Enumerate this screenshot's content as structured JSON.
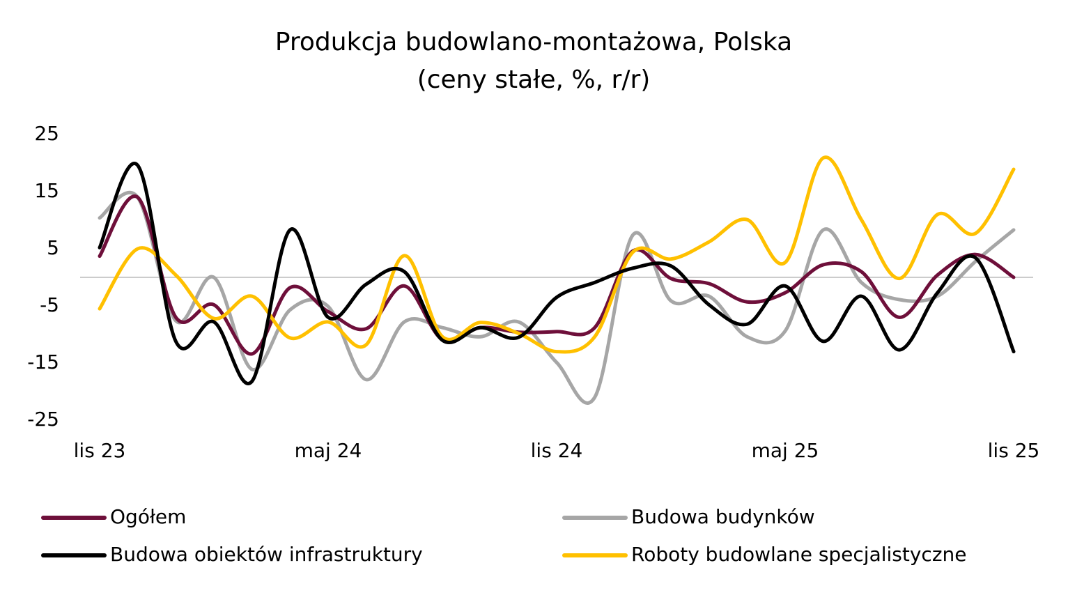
{
  "chart_data": {
    "type": "line",
    "title": "Produkcja budowlano-montażowa, Polska",
    "subtitle": "(ceny stałe, %, r/r)",
    "categories": [
      "lis 23",
      null,
      null,
      null,
      null,
      null,
      "maj 24",
      null,
      null,
      null,
      null,
      null,
      "lis 24",
      null,
      null,
      null,
      null,
      null,
      "maj 25",
      null,
      null,
      null,
      null,
      null,
      "lis 25"
    ],
    "ylim": [
      -25,
      25
    ],
    "yticks": [
      -25,
      -15,
      -5,
      5,
      15,
      25
    ],
    "series": [
      {
        "name": "Ogółem",
        "color": "#6e0f3a",
        "values": [
          3.7,
          14,
          -7,
          -4.8,
          -13.4,
          -1.8,
          -6,
          -9,
          -1.5,
          -10.9,
          -8.8,
          -9.6,
          -9.5,
          -8.8,
          4.6,
          -0.2,
          -1.1,
          -4.3,
          -2.7,
          2.2,
          1,
          -7,
          0.4,
          4,
          0
        ]
      },
      {
        "name": "Budowa budynków",
        "color": "#a6a6a6",
        "values": [
          10.4,
          14,
          -7.6,
          0,
          -16.1,
          -5.7,
          -5.1,
          -17.9,
          -7.8,
          -8.8,
          -10.4,
          -7.8,
          -14.9,
          -21,
          7.4,
          -4.1,
          -3.3,
          -10.4,
          -9.4,
          8.3,
          -0.9,
          -3.9,
          -3.3,
          2.8,
          8.3
        ]
      },
      {
        "name": "Budowa obiektów infrastruktury",
        "color": "#000000",
        "values": [
          5.2,
          19.6,
          -11.2,
          -7.8,
          -18.2,
          8.3,
          -7,
          -1.2,
          1,
          -11,
          -8.8,
          -10.5,
          -3.5,
          -0.9,
          1.6,
          2,
          -4.8,
          -8.2,
          -1.5,
          -11.2,
          -3.3,
          -12.7,
          -2.7,
          3.4,
          -13
        ]
      },
      {
        "name": "Roboty budowlane specjalistyczne",
        "color": "#ffc000",
        "values": [
          -5.5,
          5,
          0.4,
          -7.2,
          -3.3,
          -10.6,
          -7.8,
          -11.8,
          3.8,
          -10.4,
          -7.9,
          -9.8,
          -13,
          -10.4,
          4.4,
          3.2,
          6.2,
          10.1,
          2.6,
          20.9,
          10.1,
          -0.2,
          11,
          7.7,
          18.9
        ]
      }
    ]
  }
}
